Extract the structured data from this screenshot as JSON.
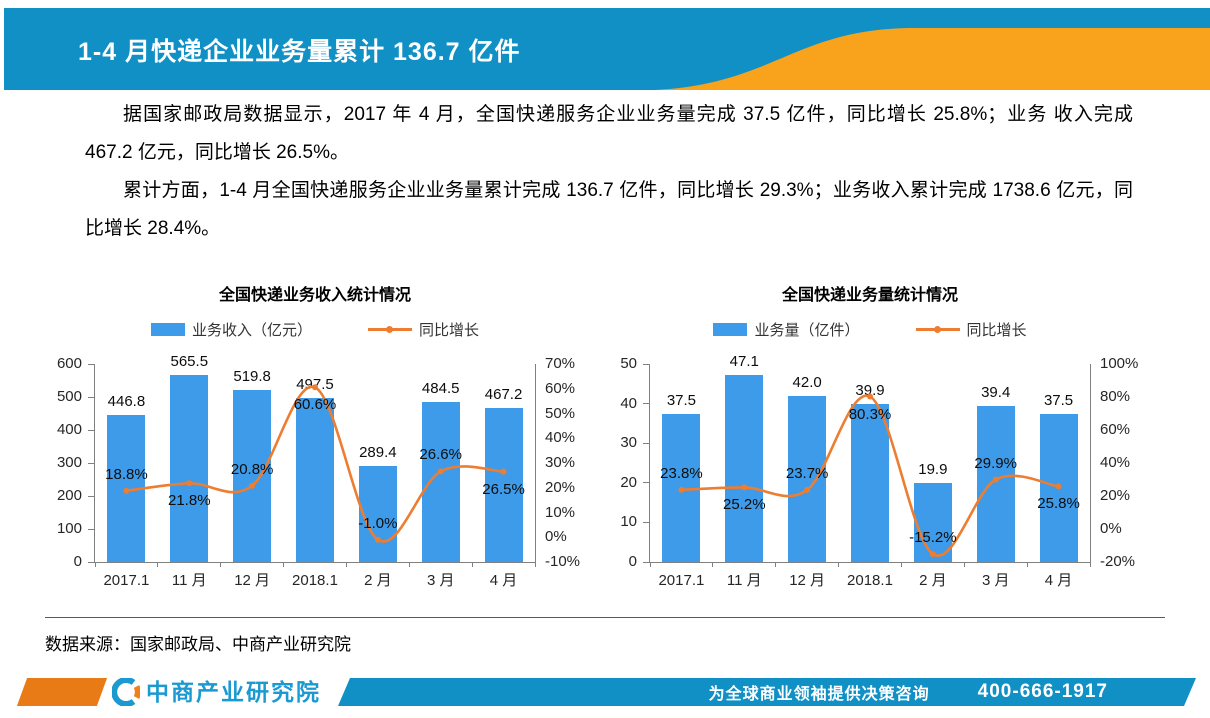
{
  "header": {
    "title": "1-4 月快递企业业务量累计 136.7 亿件"
  },
  "paragraphs": [
    "据国家邮政局数据显示，2017 年 4 月，全国快递服务企业业务量完成 37.5 亿件，同比增长 25.8%；业务 收入完成 467.2 亿元，同比增长 26.5%。",
    "累计方面，1-4 月全国快递服务企业业务量累计完成 136.7 亿件，同比增长 29.3%；业务收入累计完成 1738.6 亿元，同比增长 28.4%。"
  ],
  "colors": {
    "header_blue": "#1090C4",
    "header_orange": "#F9A21C",
    "bar_blue": "#3E9BE9",
    "line_orange": "#ED7D31"
  },
  "chart_data": [
    {
      "type": "bar",
      "title": "全国快递业务收入统计情况",
      "categories": [
        "2017.1",
        "11 月",
        "12 月",
        "2018.1",
        "2 月",
        "3 月",
        "4 月"
      ],
      "series": [
        {
          "name": "业务收入（亿元）",
          "type": "bar",
          "axis": "left",
          "color": "#3E9BE9",
          "values": [
            446.8,
            565.5,
            519.8,
            497.5,
            289.4,
            484.5,
            467.2
          ],
          "labels": [
            "446.8",
            "565.5",
            "519.8",
            "497.5",
            "289.4",
            "484.5",
            "467.2"
          ]
        },
        {
          "name": "同比增长",
          "type": "line",
          "axis": "right",
          "color": "#ED7D31",
          "values": [
            18.8,
            21.8,
            20.8,
            60.6,
            -1.0,
            26.6,
            26.5
          ],
          "labels": [
            "18.8%",
            "21.8%",
            "20.8%",
            "60.6%",
            "-1.0%",
            "26.6%",
            "26.5%"
          ],
          "label_positions": [
            "above",
            "below",
            "above",
            "below",
            "above",
            "above",
            "below"
          ]
        }
      ],
      "left_axis": {
        "min": 0,
        "max": 600,
        "step": 100,
        "ticks": [
          "600",
          "500",
          "400",
          "300",
          "200",
          "100",
          "0"
        ]
      },
      "right_axis": {
        "min": -10,
        "max": 70,
        "step": 10,
        "ticks": [
          "70%",
          "60%",
          "50%",
          "40%",
          "30%",
          "20%",
          "10%",
          "0%",
          "-10%"
        ]
      },
      "grid": "off",
      "legend_position": "top"
    },
    {
      "type": "bar",
      "title": "全国快递业务量统计情况",
      "categories": [
        "2017.1",
        "11 月",
        "12 月",
        "2018.1",
        "2 月",
        "3 月",
        "4 月"
      ],
      "series": [
        {
          "name": "业务量（亿件）",
          "type": "bar",
          "axis": "left",
          "color": "#3E9BE9",
          "values": [
            37.5,
            47.1,
            42.0,
            39.9,
            19.9,
            39.4,
            37.5
          ],
          "labels": [
            "37.5",
            "47.1",
            "42.0",
            "39.9",
            "19.9",
            "39.4",
            "37.5"
          ]
        },
        {
          "name": "同比增长",
          "type": "line",
          "axis": "right",
          "color": "#ED7D31",
          "values": [
            23.8,
            25.2,
            23.7,
            80.3,
            -15.2,
            29.9,
            25.8
          ],
          "labels": [
            "23.8%",
            "25.2%",
            "23.7%",
            "80.3%",
            "-15.2%",
            "29.9%",
            "25.8%"
          ],
          "label_positions": [
            "above",
            "below",
            "above",
            "below",
            "above",
            "above",
            "below"
          ]
        }
      ],
      "left_axis": {
        "min": 0,
        "max": 50,
        "step": 10,
        "ticks": [
          "50",
          "40",
          "30",
          "20",
          "10",
          "0"
        ]
      },
      "right_axis": {
        "min": -20,
        "max": 100,
        "step": 20,
        "ticks": [
          "100%",
          "80%",
          "60%",
          "40%",
          "20%",
          "0%",
          "-20%"
        ]
      },
      "grid": "off",
      "legend_position": "top"
    }
  ],
  "source": "数据来源：国家邮政局、中商产业研究院",
  "footer": {
    "logo_text": "中商产业研究院",
    "slogan": "为全球商业领袖提供决策咨询",
    "phone": "400-666-1917"
  }
}
